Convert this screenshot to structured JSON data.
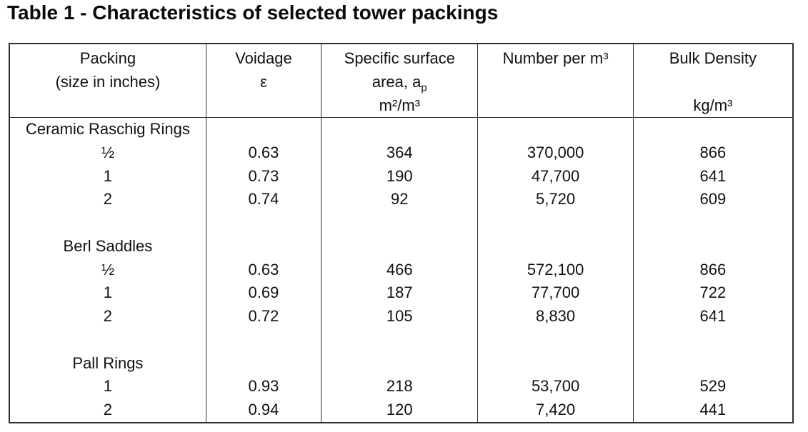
{
  "title": "Table 1 - Characteristics of selected tower packings",
  "table": {
    "headers": {
      "packing": {
        "line1": "Packing",
        "line2": "(size in inches)"
      },
      "voidage": {
        "line1": "Voidage",
        "line2": "ε"
      },
      "surface": {
        "line1": "Specific surface",
        "line2_prefix": "area, a",
        "line2_sub": "p",
        "line3": "m²/m³"
      },
      "number": {
        "line1": "Number per m³"
      },
      "bulk": {
        "line1": "Bulk Density",
        "line3": "kg/m³"
      }
    },
    "column_keys": [
      "packing",
      "voidage",
      "surface",
      "number",
      "bulk"
    ],
    "rows": [
      [
        "Ceramic Raschig Rings",
        "",
        "",
        "",
        ""
      ],
      [
        "½",
        "0.63",
        "364",
        "370,000",
        "866"
      ],
      [
        "1",
        "0.73",
        "190",
        "47,700",
        "641"
      ],
      [
        "2",
        "0.74",
        "92",
        "5,720",
        "609"
      ],
      [
        "",
        "",
        "",
        "",
        ""
      ],
      [
        "Berl Saddles",
        "",
        "",
        "",
        ""
      ],
      [
        "½",
        "0.63",
        "466",
        "572,100",
        "866"
      ],
      [
        "1",
        "0.69",
        "187",
        "77,700",
        "722"
      ],
      [
        "2",
        "0.72",
        "105",
        "8,830",
        "641"
      ],
      [
        "",
        "",
        "",
        "",
        ""
      ],
      [
        "Pall Rings",
        "",
        "",
        "",
        ""
      ],
      [
        "1",
        "0.93",
        "218",
        "53,700",
        "529"
      ],
      [
        "2",
        "0.94",
        "120",
        "7,420",
        "441"
      ]
    ]
  },
  "colors": {
    "background": "#ffffff",
    "text": "#111111",
    "border": "#2e2e2e"
  }
}
